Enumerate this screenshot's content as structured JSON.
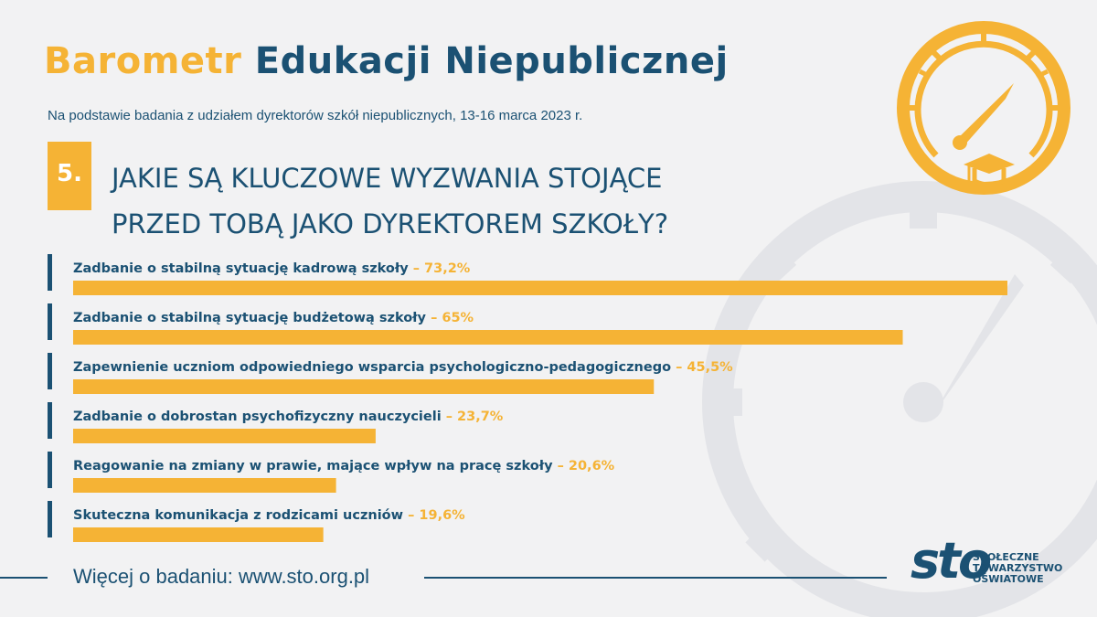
{
  "header": {
    "title_part1": "Barometr",
    "title_part2": "Edukacji Niepublicznej",
    "subtitle": "Na podstawie badania z udziałem dyrektorów szkół niepublicznych, 13-16 marca 2023 r."
  },
  "question": {
    "number": "5.",
    "line1": "JAKIE SĄ KLUCZOWE WYZWANIA STOJĄCE",
    "line2": "PRZED TOBĄ JAKO DYREKTOREM SZKOŁY?"
  },
  "chart_data": {
    "type": "bar",
    "orientation": "horizontal",
    "categories": [
      "Zadbanie o stabilną sytuację kadrową szkoły",
      "Zadbanie o stabilną sytuację budżetową szkoły",
      "Zapewnienie uczniom odpowiedniego wsparcia psychologiczno-pedagogicznego",
      "Zadbanie o dobrostan psychofizyczny nauczycieli",
      "Reagowanie na zmiany w prawie, mające wpływ na pracę szkoły",
      "Skuteczna komunikacja z rodzicami uczniów"
    ],
    "values": [
      73.2,
      65,
      45.5,
      23.7,
      20.6,
      19.6
    ],
    "value_labels": [
      "73,2%",
      "65%",
      "45,5%",
      "23,7%",
      "20,6%",
      "19,6%"
    ],
    "separator": "–",
    "xlim": [
      0,
      100
    ],
    "grid": false
  },
  "footer": {
    "text": "Więcej o badaniu: www.sto.org.pl"
  },
  "logo": {
    "mark": "sto",
    "line1": "SPOŁECZNE",
    "line2": "TOWARZYSTWO",
    "line3": "OŚWIATOWE"
  },
  "icons": {
    "gauge": "gauge-graduation-cap-icon"
  },
  "colors": {
    "accent": "#f5b335",
    "primary": "#1b5173",
    "background": "#f2f2f3",
    "watermark": "#e3e4e8"
  }
}
